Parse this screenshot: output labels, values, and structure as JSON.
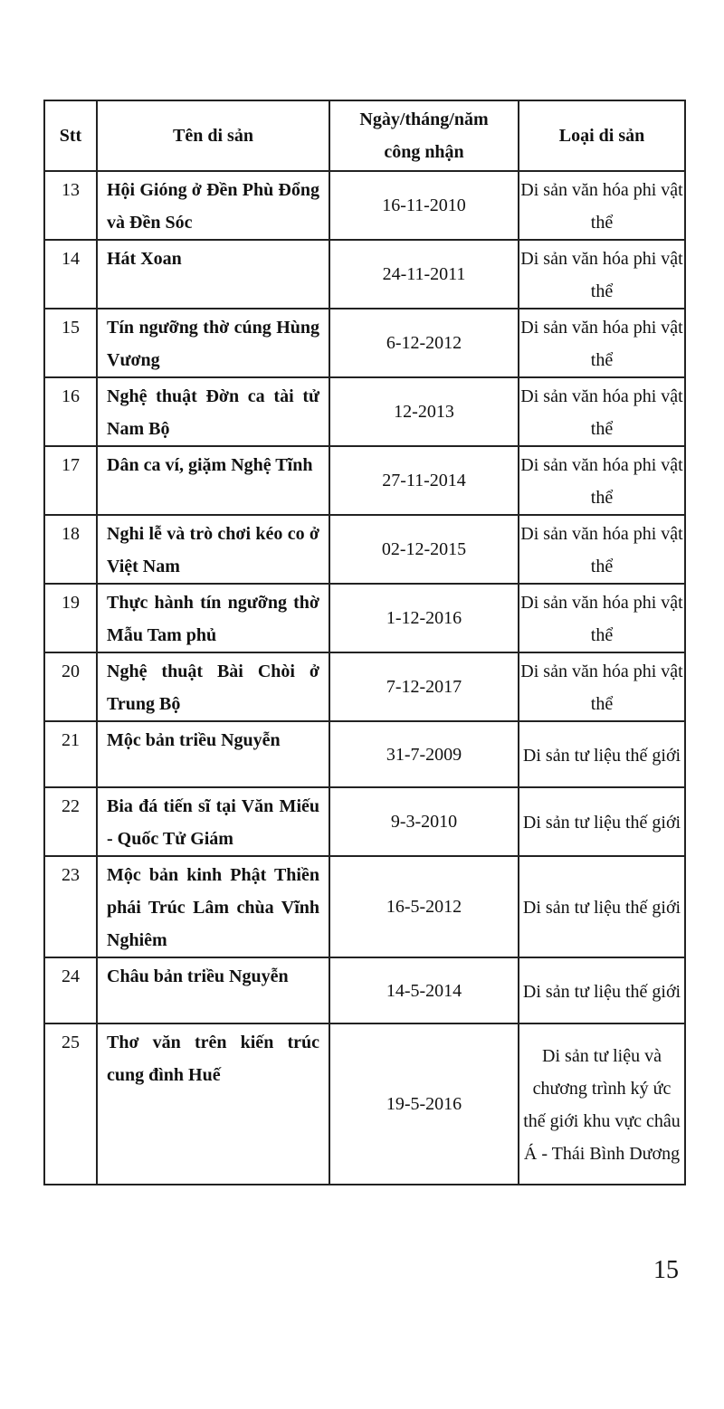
{
  "table": {
    "headers": [
      "Stt",
      "Tên di sản",
      "Ngày/tháng/năm công nhận",
      "Loại di sản"
    ],
    "rows": [
      {
        "stt": "13",
        "name": "Hội Gióng ở Đền Phù Đổng và Đền Sóc",
        "date": "16-11-2010",
        "type": "Di sản văn hóa phi vật thể"
      },
      {
        "stt": "14",
        "name": "Hát Xoan",
        "date": "24-11-2011",
        "type": "Di sản văn hóa phi vật thể"
      },
      {
        "stt": "15",
        "name": "Tín ngưỡng thờ cúng Hùng Vương",
        "date": "6-12-2012",
        "type": "Di sản văn hóa phi vật thể"
      },
      {
        "stt": "16",
        "name": "Nghệ thuật Đờn ca tài tử Nam Bộ",
        "date": "12-2013",
        "type": "Di sản văn hóa phi vật thể"
      },
      {
        "stt": "17",
        "name": "Dân ca ví, giặm Nghệ Tĩnh",
        "date": "27-11-2014",
        "type": "Di sản văn hóa phi vật thể"
      },
      {
        "stt": "18",
        "name": "Nghi lễ và trò chơi kéo co ở Việt Nam",
        "date": "02-12-2015",
        "type": "Di sản văn hóa phi vật thể"
      },
      {
        "stt": "19",
        "name": "Thực hành tín ngưỡng thờ Mẫu Tam phủ",
        "date": "1-12-2016",
        "type": "Di sản văn hóa phi vật thể"
      },
      {
        "stt": "20",
        "name": "Nghệ thuật Bài Chòi ở Trung Bộ",
        "date": "7-12-2017",
        "type": "Di sản văn hóa phi vật thể"
      },
      {
        "stt": "21",
        "name": "Mộc bản triều Nguyễn",
        "date": "31-7-2009",
        "type": "Di sản tư liệu thế giới"
      },
      {
        "stt": "22",
        "name": "Bia đá tiến sĩ tại Văn Miếu - Quốc Tử Giám",
        "date": "9-3-2010",
        "type": "Di sản tư liệu thế giới"
      },
      {
        "stt": "23",
        "name": "Mộc bản kinh Phật Thiền phái Trúc Lâm chùa Vĩnh Nghiêm",
        "date": "16-5-2012",
        "type": "Di sản tư liệu thế giới"
      },
      {
        "stt": "24",
        "name": "Châu bản triều Nguyễn",
        "date": "14-5-2014",
        "type": "Di sản tư liệu thế giới"
      },
      {
        "stt": "25",
        "name": "Thơ văn trên kiến trúc cung đình Huế",
        "date": "19-5-2016",
        "type": "Di sản tư liệu và chương trình ký ức thế giới khu vực châu Á - Thái Bình Dương"
      }
    ]
  },
  "page_number": "15"
}
